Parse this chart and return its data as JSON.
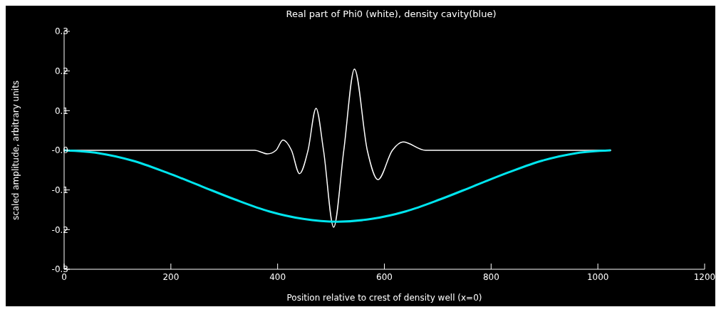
{
  "chart_data": {
    "type": "line",
    "title": "Real part of Phi0 (white), density cavity(blue)",
    "xlabel": "Position relative to crest of density well (x=0)",
    "ylabel": "scaled amplitude, arbitrary units",
    "xlim": [
      0,
      1200
    ],
    "xticks": [
      0,
      200,
      400,
      600,
      800,
      1000,
      1200
    ],
    "ylim": [
      -0.3,
      0.3
    ],
    "yticks": [
      -0.3,
      -0.2,
      -0.1,
      {
        "value": 0,
        "label": "-0.0"
      },
      0.1,
      0.2,
      0.3
    ],
    "marker": "none",
    "line_style": "solid",
    "series": [
      {
        "color": "#ffffff",
        "x": [
          0,
          100,
          200,
          300,
          357,
          381,
          397,
          410,
          426,
          441,
          457,
          472,
          486,
          505,
          524,
          544,
          568,
          588,
          615,
          635,
          677,
          800,
          900,
          1025
        ],
        "values": [
          0,
          0,
          0,
          0,
          0,
          -0.009,
          0,
          0.026,
          0,
          -0.059,
          0,
          0.106,
          0,
          -0.194,
          0,
          0.205,
          0,
          -0.074,
          0,
          0.021,
          0,
          0,
          0,
          0
        ]
      },
      {
        "color": "#00e5ee",
        "x": [
          0,
          64,
          128,
          192,
          256,
          320,
          384,
          448,
          512,
          576,
          640,
          704,
          768,
          832,
          896,
          960,
          1024
        ],
        "values": [
          0,
          -0.007,
          -0.026,
          -0.056,
          -0.09,
          -0.124,
          -0.154,
          -0.173,
          -0.18,
          -0.173,
          -0.154,
          -0.124,
          -0.09,
          -0.056,
          -0.026,
          -0.007,
          0
        ]
      }
    ]
  }
}
